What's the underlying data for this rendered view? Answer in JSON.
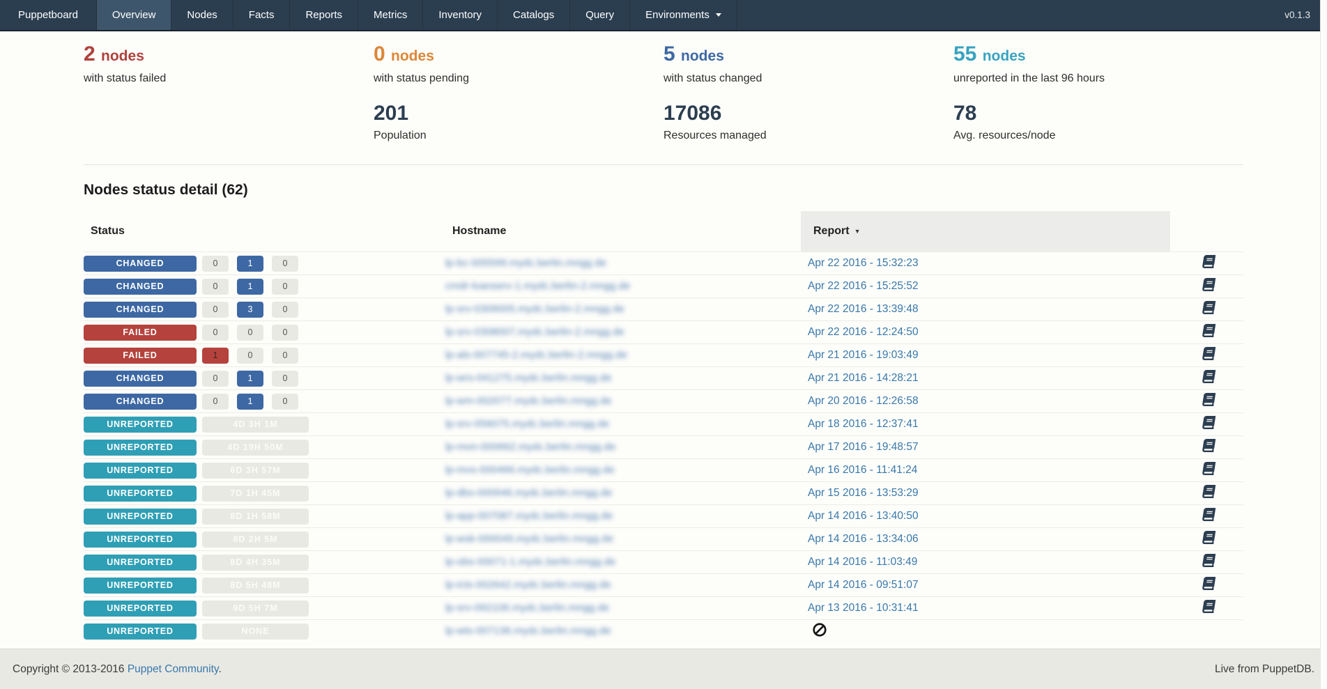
{
  "navbar": {
    "brand": "Puppetboard",
    "items": [
      "Overview",
      "Nodes",
      "Facts",
      "Reports",
      "Metrics",
      "Inventory",
      "Catalogs",
      "Query",
      "Environments"
    ],
    "active": "Overview",
    "dropdown_items": [
      "Environments"
    ],
    "version": "v0.1.3"
  },
  "colors": {
    "navbar_bg": "#2b3e50",
    "failed": "#b0413b",
    "pending": "#dd8637",
    "changed": "#3d68a3",
    "unreported": "#2f9fb5",
    "number_dark": "#2c3e50",
    "link_blue": "#3878ab"
  },
  "stats_primary": [
    {
      "value": "2",
      "unit": "nodes",
      "label": "with status failed",
      "color": "#b0413b"
    },
    {
      "value": "0",
      "unit": "nodes",
      "label": "with status pending",
      "color": "#dd8637"
    },
    {
      "value": "5",
      "unit": "nodes",
      "label": "with status changed",
      "color": "#3d68a3"
    },
    {
      "value": "55",
      "unit": "nodes",
      "label": "unreported in the last 96 hours",
      "color": "#38a3c0"
    }
  ],
  "stats_secondary": [
    {
      "value": "",
      "label": ""
    },
    {
      "value": "201",
      "label": "Population"
    },
    {
      "value": "17086",
      "label": "Resources managed"
    },
    {
      "value": "78",
      "label": "Avg. resources/node"
    }
  ],
  "table": {
    "title": "Nodes status detail (62)",
    "headers": {
      "status": "Status",
      "hostname": "Hostname",
      "report": "Report",
      "sort_indicator": "▼"
    },
    "rows": [
      {
        "status": "CHANGED",
        "counts": [
          {
            "value": "0",
            "type": "gray"
          },
          {
            "value": "1",
            "type": "blue"
          },
          {
            "value": "0",
            "type": "gray"
          }
        ],
        "hostname": "lp-bc-005599.mydc.berlin.mngg.de",
        "report_date": "Apr 22 2016 - 15:32:23",
        "report_icon": "book"
      },
      {
        "status": "CHANGED",
        "counts": [
          {
            "value": "0",
            "type": "gray"
          },
          {
            "value": "1",
            "type": "blue"
          },
          {
            "value": "0",
            "type": "gray"
          }
        ],
        "hostname": "cmdr-loanserv-1.mydc.berlin-2.mngg.de",
        "report_date": "Apr 22 2016 - 15:25:52",
        "report_icon": "book"
      },
      {
        "status": "CHANGED",
        "counts": [
          {
            "value": "0",
            "type": "gray"
          },
          {
            "value": "3",
            "type": "blue"
          },
          {
            "value": "0",
            "type": "gray"
          }
        ],
        "hostname": "lp-srv-0309005.mydc.berlin-2.mngg.de",
        "report_date": "Apr 22 2016 - 13:39:48",
        "report_icon": "book"
      },
      {
        "status": "FAILED",
        "counts": [
          {
            "value": "0",
            "type": "gray"
          },
          {
            "value": "0",
            "type": "gray"
          },
          {
            "value": "0",
            "type": "gray"
          }
        ],
        "hostname": "lp-srv-0308007.mydc.berlin-2.mngg.de",
        "report_date": "Apr 22 2016 - 12:24:50",
        "report_icon": "book"
      },
      {
        "status": "FAILED",
        "counts": [
          {
            "value": "1",
            "type": "red"
          },
          {
            "value": "0",
            "type": "gray"
          },
          {
            "value": "0",
            "type": "gray"
          }
        ],
        "hostname": "lp-als-007745-2.mydc.berlin-2.mngg.de",
        "report_date": "Apr 21 2016 - 19:03:49",
        "report_icon": "book"
      },
      {
        "status": "CHANGED",
        "counts": [
          {
            "value": "0",
            "type": "gray"
          },
          {
            "value": "1",
            "type": "blue"
          },
          {
            "value": "0",
            "type": "gray"
          }
        ],
        "hostname": "lp-wrs-041275.mydc.berlin.mngg.de",
        "report_date": "Apr 21 2016 - 14:28:21",
        "report_icon": "book"
      },
      {
        "status": "CHANGED",
        "counts": [
          {
            "value": "0",
            "type": "gray"
          },
          {
            "value": "1",
            "type": "blue"
          },
          {
            "value": "0",
            "type": "gray"
          }
        ],
        "hostname": "lp-wm-002077.mydc.berlin.mngg.de",
        "report_date": "Apr 20 2016 - 12:26:58",
        "report_icon": "book"
      },
      {
        "status": "UNREPORTED",
        "duration": "4D 3H 1M",
        "hostname": "lp-srv-056075.mydc.berlin.mngg.de",
        "report_date": "Apr 18 2016 - 12:37:41",
        "report_icon": "book"
      },
      {
        "status": "UNREPORTED",
        "duration": "4D 19H 50M",
        "hostname": "lp-mon-000662.mydc.berlin.mngg.de",
        "report_date": "Apr 17 2016 - 19:48:57",
        "report_icon": "book"
      },
      {
        "status": "UNREPORTED",
        "duration": "6D 3H 57M",
        "hostname": "lp-mvs-000466.mydc.berlin.mngg.de",
        "report_date": "Apr 16 2016 - 11:41:24",
        "report_icon": "book"
      },
      {
        "status": "UNREPORTED",
        "duration": "7D 1H 45M",
        "hostname": "lp-dbs-000946.mydc.berlin.mngg.de",
        "report_date": "Apr 15 2016 - 13:53:29",
        "report_icon": "book"
      },
      {
        "status": "UNREPORTED",
        "duration": "8D 1H 58M",
        "hostname": "lp-app-007087.mydc.berlin.mngg.de",
        "report_date": "Apr 14 2016 - 13:40:50",
        "report_icon": "book"
      },
      {
        "status": "UNREPORTED",
        "duration": "8D 2H 5M",
        "hostname": "lp-wsk-000049.mydc.berlin.mngg.de",
        "report_date": "Apr 14 2016 - 13:34:06",
        "report_icon": "book"
      },
      {
        "status": "UNREPORTED",
        "duration": "8D 4H 35M",
        "hostname": "lp-obs-00071-1.mydc.berlin.mngg.de",
        "report_date": "Apr 14 2016 - 11:03:49",
        "report_icon": "book"
      },
      {
        "status": "UNREPORTED",
        "duration": "8D 5H 48M",
        "hostname": "lp-icts-002642.mydc.berlin.mngg.de",
        "report_date": "Apr 14 2016 - 09:51:07",
        "report_icon": "book"
      },
      {
        "status": "UNREPORTED",
        "duration": "9D 5H 7M",
        "hostname": "lp-srv-092106.mydc.berlin.mngg.de",
        "report_date": "Apr 13 2016 - 10:31:41",
        "report_icon": "book"
      },
      {
        "status": "UNREPORTED",
        "duration": "NONE",
        "hostname": "lp-wts-007136.mydc.berlin.mngg.de",
        "report_date": "",
        "report_icon": "ban"
      }
    ]
  },
  "footer": {
    "copyright_prefix": "Copyright © 2013-2016 ",
    "copyright_link": "Puppet Community",
    "copyright_suffix": ".",
    "status": "Live from PuppetDB."
  }
}
